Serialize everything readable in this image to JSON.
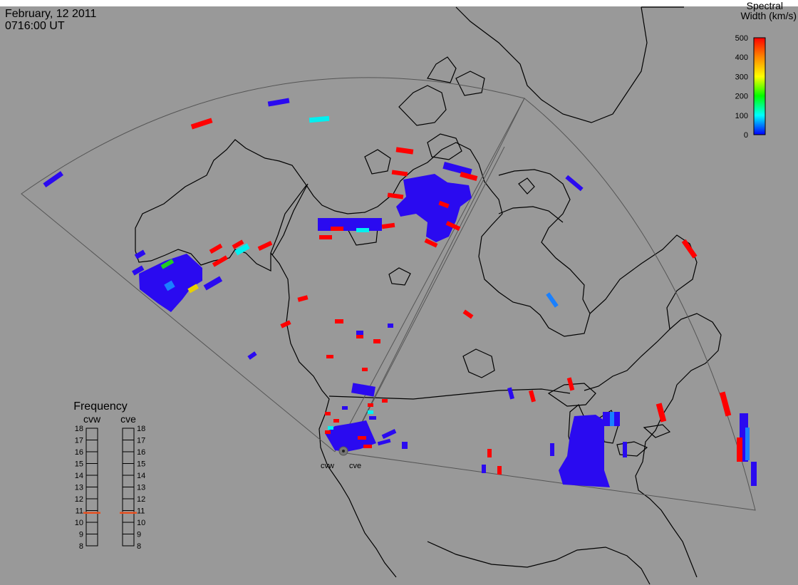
{
  "header": {
    "date": "February, 12 2011",
    "time": "0716:00 UT"
  },
  "colorbar": {
    "title_line1": "Spectral",
    "title_line2": "Width (km/s)",
    "ticks": [
      "500",
      "400",
      "300",
      "200",
      "100",
      "0"
    ],
    "gradient": [
      "#ff0000",
      "#ff8800",
      "#ffff00",
      "#00ff00",
      "#00ffff",
      "#0000ff"
    ]
  },
  "frequency": {
    "title": "Frequency",
    "radars": [
      "cvw",
      "cve"
    ],
    "ticks": [
      "18",
      "17",
      "16",
      "15",
      "14",
      "13",
      "12",
      "11",
      "10",
      "9",
      "8"
    ],
    "cvw_value": 10.8,
    "cve_value": 10.8,
    "marker_color": "#e85020"
  },
  "sites": {
    "west_label": "cvw",
    "east_label": "cve"
  },
  "colors": {
    "background": "#999999",
    "blue": "#2a0af0",
    "red": "#ff0000",
    "cyan": "#00f0f0",
    "green": "#22cc22",
    "yellow": "#e8d000",
    "lightblue": "#1a80ff"
  }
}
